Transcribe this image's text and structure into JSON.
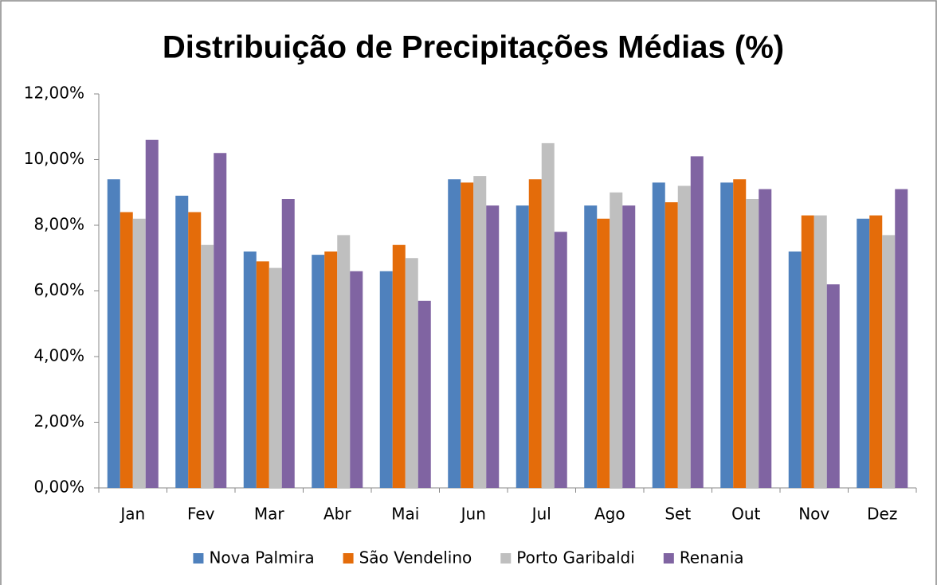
{
  "chart_data": {
    "type": "bar",
    "title": "Distribuição de Precipitações Médias (%)",
    "categories": [
      "Jan",
      "Fev",
      "Mar",
      "Abr",
      "Mai",
      "Jun",
      "Jul",
      "Ago",
      "Set",
      "Out",
      "Nov",
      "Dez"
    ],
    "series": [
      {
        "name": "Nova Palmira",
        "color": "#4f81bd",
        "values": [
          9.4,
          8.9,
          7.2,
          7.1,
          6.6,
          9.4,
          8.6,
          8.6,
          9.3,
          9.3,
          7.2,
          8.2
        ]
      },
      {
        "name": "São Vendelino",
        "color": "#e46c0a",
        "values": [
          8.4,
          8.4,
          6.9,
          7.2,
          7.4,
          9.3,
          9.4,
          8.2,
          8.7,
          9.4,
          8.3,
          8.3
        ]
      },
      {
        "name": "Porto Garibaldi",
        "color": "#bfbfbf",
        "values": [
          8.2,
          7.4,
          6.7,
          7.7,
          7.0,
          9.5,
          10.5,
          9.0,
          9.2,
          8.8,
          8.3,
          7.7
        ]
      },
      {
        "name": "Renania",
        "color": "#8064a2",
        "values": [
          10.6,
          10.2,
          8.8,
          6.6,
          5.7,
          8.6,
          7.8,
          8.6,
          10.1,
          9.1,
          6.2,
          9.1
        ]
      }
    ],
    "ylim": [
      0,
      12
    ],
    "yticks": [
      {
        "value": 0,
        "label": "0,00%"
      },
      {
        "value": 2,
        "label": "2,00%"
      },
      {
        "value": 4,
        "label": "4,00%"
      },
      {
        "value": 6,
        "label": "6,00%"
      },
      {
        "value": 8,
        "label": "8,00%"
      },
      {
        "value": 10,
        "label": "10,00%"
      },
      {
        "value": 12,
        "label": "12,00%"
      }
    ],
    "grid": false,
    "legend": "bottom"
  }
}
